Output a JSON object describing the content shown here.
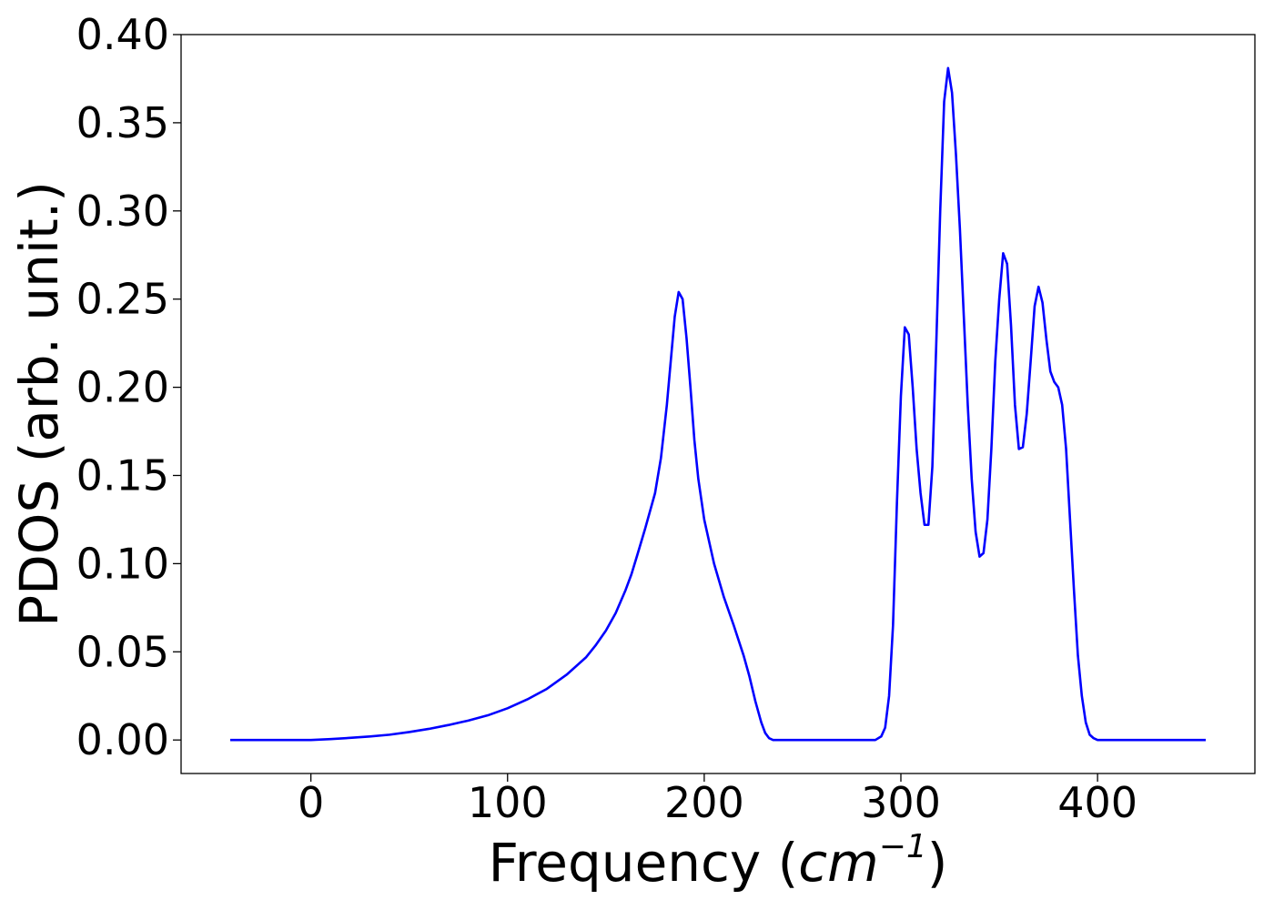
{
  "chart_data": {
    "type": "line",
    "title": "",
    "xlabel": "Frequency (",
    "xlabel_unit": "cm",
    "xlabel_exponent": "−1",
    "xlabel_close": ")",
    "ylabel": "PDOS (arb. unit.)",
    "xlim": [
      -66,
      480
    ],
    "ylim": [
      -0.019,
      0.4
    ],
    "xticks": [
      0,
      100,
      200,
      300,
      400
    ],
    "xtick_labels": [
      "0",
      "100",
      "200",
      "300",
      "400"
    ],
    "yticks": [
      0.0,
      0.05,
      0.1,
      0.15,
      0.2,
      0.25,
      0.3,
      0.35,
      0.4
    ],
    "ytick_labels": [
      "0.00",
      "0.05",
      "0.10",
      "0.15",
      "0.20",
      "0.25",
      "0.30",
      "0.35",
      "0.40"
    ],
    "grid": false,
    "legend": "none",
    "line_color": "#0000ff",
    "series": [
      {
        "x": [
          -41,
          0,
          10,
          20,
          30,
          40,
          50,
          60,
          70,
          80,
          90,
          100,
          110,
          120,
          130,
          140,
          145,
          150,
          155,
          160,
          163,
          166,
          170,
          175,
          178,
          181,
          183,
          185,
          187,
          189,
          191,
          193,
          195,
          197,
          200,
          205,
          210,
          215,
          220,
          223,
          226,
          229,
          231,
          233,
          235,
          238,
          245,
          260,
          280,
          287,
          290,
          292,
          294,
          296,
          298,
          300,
          302,
          304,
          306,
          308,
          310,
          312,
          314,
          316,
          318,
          320,
          322,
          324,
          326,
          328,
          330,
          332,
          334,
          336,
          338,
          340,
          342,
          344,
          346,
          348,
          350,
          352,
          354,
          356,
          358,
          360,
          362,
          364,
          366,
          368,
          370,
          372,
          374,
          376,
          378,
          380,
          382,
          384,
          386,
          388,
          390,
          392,
          394,
          396,
          398,
          400,
          402,
          404,
          406,
          408,
          410,
          412,
          414,
          416,
          418,
          420,
          422,
          424,
          427,
          435,
          455
        ],
        "y": [
          0.0,
          0.0,
          0.0005,
          0.0012,
          0.002,
          0.003,
          0.0045,
          0.0063,
          0.0085,
          0.011,
          0.014,
          0.018,
          0.023,
          0.029,
          0.037,
          0.047,
          0.054,
          0.062,
          0.072,
          0.085,
          0.094,
          0.105,
          0.12,
          0.14,
          0.16,
          0.19,
          0.215,
          0.24,
          0.254,
          0.25,
          0.228,
          0.2,
          0.17,
          0.148,
          0.125,
          0.1,
          0.081,
          0.065,
          0.048,
          0.036,
          0.022,
          0.01,
          0.004,
          0.001,
          0.0,
          0.0,
          0.0,
          0.0,
          0.0,
          0.0,
          0.002,
          0.007,
          0.025,
          0.065,
          0.135,
          0.195,
          0.234,
          0.23,
          0.2,
          0.165,
          0.14,
          0.122,
          0.122,
          0.155,
          0.225,
          0.3,
          0.362,
          0.381,
          0.367,
          0.332,
          0.29,
          0.24,
          0.19,
          0.148,
          0.118,
          0.104,
          0.106,
          0.125,
          0.165,
          0.215,
          0.25,
          0.276,
          0.27,
          0.235,
          0.19,
          0.165,
          0.166,
          0.185,
          0.215,
          0.246,
          0.257,
          0.248,
          0.227,
          0.209,
          0.203,
          0.2,
          0.19,
          0.165,
          0.125,
          0.085,
          0.048,
          0.025,
          0.01,
          0.003,
          0.001,
          0.0,
          0.0,
          0.0,
          0.0,
          0.0,
          0.0,
          0.0,
          0.0,
          0.0,
          0.0,
          0.0,
          0.0,
          0.0,
          0.0,
          0.0,
          0.0
        ]
      }
    ]
  }
}
